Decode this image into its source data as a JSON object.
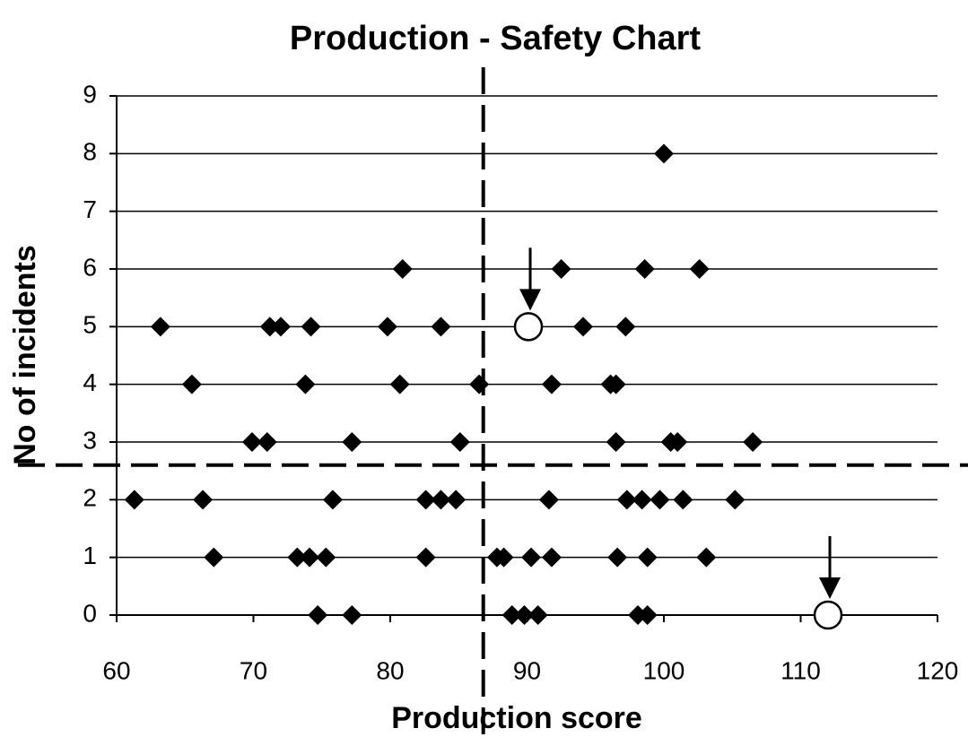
{
  "chart_data": {
    "type": "scatter",
    "title": "Production - Safety Chart",
    "x_label": "Production score",
    "y_label": "No of incidents",
    "xlim": [
      60,
      120
    ],
    "xticks": [
      60,
      70,
      80,
      90,
      100,
      110,
      120
    ],
    "ylim": [
      0,
      9
    ],
    "yticks": [
      0,
      1,
      2,
      3,
      4,
      5,
      6,
      7,
      8,
      9
    ],
    "grid": true,
    "reference_lines": {
      "x": 86.8,
      "y": 2.6
    },
    "series": [
      {
        "color": "#000000",
        "marker": "diamond",
        "x": [
          100,
          80.9,
          92.5,
          98.6,
          102.6,
          63.2,
          71.2,
          72.0,
          74.2,
          79.8,
          83.7,
          94.1,
          97.2,
          65.5,
          73.8,
          80.7,
          86.5,
          91.8,
          96.1,
          96.5,
          69.9,
          71.0,
          77.2,
          85.1,
          96.5,
          100.5,
          101.0,
          106.5,
          61.3,
          66.3,
          75.8,
          82.6,
          83.7,
          84.8,
          91.6,
          97.3,
          98.4,
          99.7,
          101.4,
          105.2,
          67.1,
          73.2,
          74.1,
          75.3,
          82.6,
          87.8,
          88.3,
          90.3,
          91.8,
          96.6,
          98.8,
          103.1,
          74.7,
          77.2,
          88.9,
          89.8,
          90.8,
          98.1,
          98.8
        ],
        "values": [
          8,
          6,
          6,
          6,
          6,
          5,
          5,
          5,
          5,
          5,
          5,
          5,
          5,
          4,
          4,
          4,
          4,
          4,
          4,
          4,
          3,
          3,
          3,
          3,
          3,
          3,
          3,
          3,
          2,
          2,
          2,
          2,
          2,
          2,
          2,
          2,
          2,
          2,
          2,
          2,
          1,
          1,
          1,
          1,
          1,
          1,
          1,
          1,
          1,
          1,
          1,
          1,
          0,
          0,
          0,
          0,
          0,
          0,
          0
        ]
      },
      {
        "color": "#ffffff",
        "marker": "circle",
        "x": [
          90.1,
          112.0
        ],
        "values": [
          5,
          0
        ]
      }
    ]
  }
}
